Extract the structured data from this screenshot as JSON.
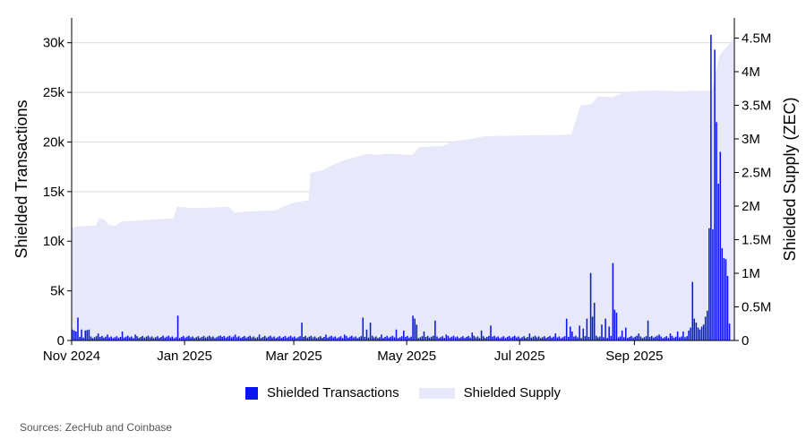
{
  "chart_data": {
    "type": "bar+area",
    "y_left_label": "Shielded Transactions",
    "y_right_label": "Shielded Supply (ZEC)",
    "y_left_ticks": [
      "0",
      "5k",
      "10k",
      "15k",
      "20k",
      "25k",
      "30k"
    ],
    "y_left_tick_values": [
      0,
      5000,
      10000,
      15000,
      20000,
      25000,
      30000
    ],
    "y_left_lim": [
      0,
      32500
    ],
    "y_right_ticks": [
      "0",
      "0.5M",
      "1M",
      "1.5M",
      "2M",
      "2.5M",
      "3M",
      "3.5M",
      "4M",
      "4.5M"
    ],
    "y_right_tick_values": [
      0,
      500000,
      1000000,
      1500000,
      2000000,
      2500000,
      3000000,
      3500000,
      4000000,
      4500000
    ],
    "y_right_lim": [
      0,
      4800000
    ],
    "x_range": [
      "2024-11-01",
      "2025-10-25"
    ],
    "x_ticks": [
      {
        "date": "2024-11-01",
        "label": "Nov 2024"
      },
      {
        "date": "2025-01-01",
        "label": "Jan 2025"
      },
      {
        "date": "2025-03-01",
        "label": "Mar 2025"
      },
      {
        "date": "2025-05-01",
        "label": "May 2025"
      },
      {
        "date": "2025-07-01",
        "label": "Jul 2025"
      },
      {
        "date": "2025-09-01",
        "label": "Sep 2025"
      }
    ],
    "grid": true,
    "series": [
      {
        "name": "Shielded Supply",
        "type": "area",
        "axis": "right",
        "color": "#e8e8fb",
        "points": [
          [
            "2024-11-01",
            1680000
          ],
          [
            "2024-11-05",
            1700000
          ],
          [
            "2024-11-14",
            1710000
          ],
          [
            "2024-11-16",
            1820000
          ],
          [
            "2024-11-19",
            1790000
          ],
          [
            "2024-11-21",
            1720000
          ],
          [
            "2024-11-24",
            1700000
          ],
          [
            "2024-11-28",
            1770000
          ],
          [
            "2024-12-10",
            1790000
          ],
          [
            "2024-12-26",
            1820000
          ],
          [
            "2024-12-28",
            1990000
          ],
          [
            "2025-01-06",
            1970000
          ],
          [
            "2025-01-25",
            1990000
          ],
          [
            "2025-01-28",
            1900000
          ],
          [
            "2025-02-05",
            1920000
          ],
          [
            "2025-02-20",
            1940000
          ],
          [
            "2025-02-24",
            2000000
          ],
          [
            "2025-03-01",
            2050000
          ],
          [
            "2025-03-09",
            2090000
          ],
          [
            "2025-03-10",
            2490000
          ],
          [
            "2025-03-16",
            2530000
          ],
          [
            "2025-03-21",
            2600000
          ],
          [
            "2025-03-28",
            2680000
          ],
          [
            "2025-04-05",
            2740000
          ],
          [
            "2025-04-10",
            2780000
          ],
          [
            "2025-04-14",
            2760000
          ],
          [
            "2025-04-20",
            2780000
          ],
          [
            "2025-05-04",
            2760000
          ],
          [
            "2025-05-08",
            2880000
          ],
          [
            "2025-05-20",
            2890000
          ],
          [
            "2025-05-27",
            2970000
          ],
          [
            "2025-06-05",
            3000000
          ],
          [
            "2025-06-12",
            3040000
          ],
          [
            "2025-07-01",
            3050000
          ],
          [
            "2025-07-25",
            3060000
          ],
          [
            "2025-07-29",
            3070000
          ],
          [
            "2025-07-31",
            3250000
          ],
          [
            "2025-08-03",
            3500000
          ],
          [
            "2025-08-09",
            3520000
          ],
          [
            "2025-08-12",
            3630000
          ],
          [
            "2025-08-20",
            3620000
          ],
          [
            "2025-08-27",
            3700000
          ],
          [
            "2025-09-10",
            3720000
          ],
          [
            "2025-09-28",
            3710000
          ],
          [
            "2025-10-03",
            3720000
          ],
          [
            "2025-10-06",
            3710000
          ],
          [
            "2025-10-13",
            3720000
          ],
          [
            "2025-10-17",
            4250000
          ],
          [
            "2025-10-25",
            4500000
          ]
        ]
      },
      {
        "name": "Shielded Transactions",
        "type": "bar",
        "axis": "left",
        "color": "#0a14f0",
        "baseline": 400,
        "spikes": [
          [
            "2024-11-01",
            1100
          ],
          [
            "2024-11-02",
            1000
          ],
          [
            "2024-11-03",
            900
          ],
          [
            "2024-11-04",
            2300
          ],
          [
            "2024-11-06",
            1100
          ],
          [
            "2024-11-08",
            1000
          ],
          [
            "2024-11-09",
            1050
          ],
          [
            "2024-11-10",
            1100
          ],
          [
            "2024-11-15",
            700
          ],
          [
            "2024-11-20",
            600
          ],
          [
            "2024-11-28",
            900
          ],
          [
            "2024-12-05",
            600
          ],
          [
            "2024-12-20",
            500
          ],
          [
            "2024-12-28",
            2500
          ],
          [
            "2025-01-20",
            500
          ],
          [
            "2025-01-28",
            600
          ],
          [
            "2025-02-10",
            600
          ],
          [
            "2025-03-05",
            1800
          ],
          [
            "2025-03-18",
            600
          ],
          [
            "2025-03-28",
            600
          ],
          [
            "2025-04-07",
            2300
          ],
          [
            "2025-04-09",
            1100
          ],
          [
            "2025-04-11",
            1800
          ],
          [
            "2025-04-17",
            600
          ],
          [
            "2025-04-25",
            1100
          ],
          [
            "2025-04-29",
            1000
          ],
          [
            "2025-05-04",
            2500
          ],
          [
            "2025-05-05",
            2200
          ],
          [
            "2025-05-06",
            1600
          ],
          [
            "2025-05-10",
            900
          ],
          [
            "2025-05-16",
            2000
          ],
          [
            "2025-05-22",
            600
          ],
          [
            "2025-06-05",
            800
          ],
          [
            "2025-06-10",
            1000
          ],
          [
            "2025-06-15",
            1500
          ],
          [
            "2025-07-06",
            700
          ],
          [
            "2025-07-20",
            700
          ],
          [
            "2025-07-26",
            2200
          ],
          [
            "2025-07-28",
            1400
          ],
          [
            "2025-07-29",
            900
          ],
          [
            "2025-08-02",
            1500
          ],
          [
            "2025-08-04",
            1200
          ],
          [
            "2025-08-06",
            2200
          ],
          [
            "2025-08-08",
            6800
          ],
          [
            "2025-08-09",
            2400
          ],
          [
            "2025-08-10",
            3800
          ],
          [
            "2025-08-14",
            1600
          ],
          [
            "2025-08-16",
            2200
          ],
          [
            "2025-08-18",
            1400
          ],
          [
            "2025-08-20",
            7800
          ],
          [
            "2025-08-21",
            3100
          ],
          [
            "2025-08-22",
            2800
          ],
          [
            "2025-08-25",
            1000
          ],
          [
            "2025-08-27",
            1300
          ],
          [
            "2025-09-03",
            700
          ],
          [
            "2025-09-08",
            2000
          ],
          [
            "2025-09-14",
            600
          ],
          [
            "2025-09-20",
            700
          ],
          [
            "2025-09-24",
            900
          ],
          [
            "2025-09-27",
            900
          ],
          [
            "2025-09-30",
            1000
          ],
          [
            "2025-10-01",
            1300
          ],
          [
            "2025-10-02",
            5900
          ],
          [
            "2025-10-03",
            2200
          ],
          [
            "2025-10-04",
            1800
          ],
          [
            "2025-10-05",
            1300
          ],
          [
            "2025-10-06",
            1100
          ],
          [
            "2025-10-07",
            1400
          ],
          [
            "2025-10-08",
            1600
          ],
          [
            "2025-10-09",
            2400
          ],
          [
            "2025-10-10",
            3000
          ],
          [
            "2025-10-11",
            11300
          ],
          [
            "2025-10-12",
            30800
          ],
          [
            "2025-10-13",
            11200
          ],
          [
            "2025-10-14",
            29300
          ],
          [
            "2025-10-15",
            22000
          ],
          [
            "2025-10-16",
            15800
          ],
          [
            "2025-10-17",
            19000
          ],
          [
            "2025-10-18",
            9300
          ],
          [
            "2025-10-19",
            8300
          ],
          [
            "2025-10-20",
            8200
          ],
          [
            "2025-10-21",
            6500
          ],
          [
            "2025-10-22",
            1700
          ]
        ]
      }
    ]
  },
  "legend": {
    "transactions_label": "Shielded Transactions",
    "supply_label": "Shielded Supply"
  },
  "footer": {
    "source": "Sources: ZecHub and Coinbase"
  }
}
